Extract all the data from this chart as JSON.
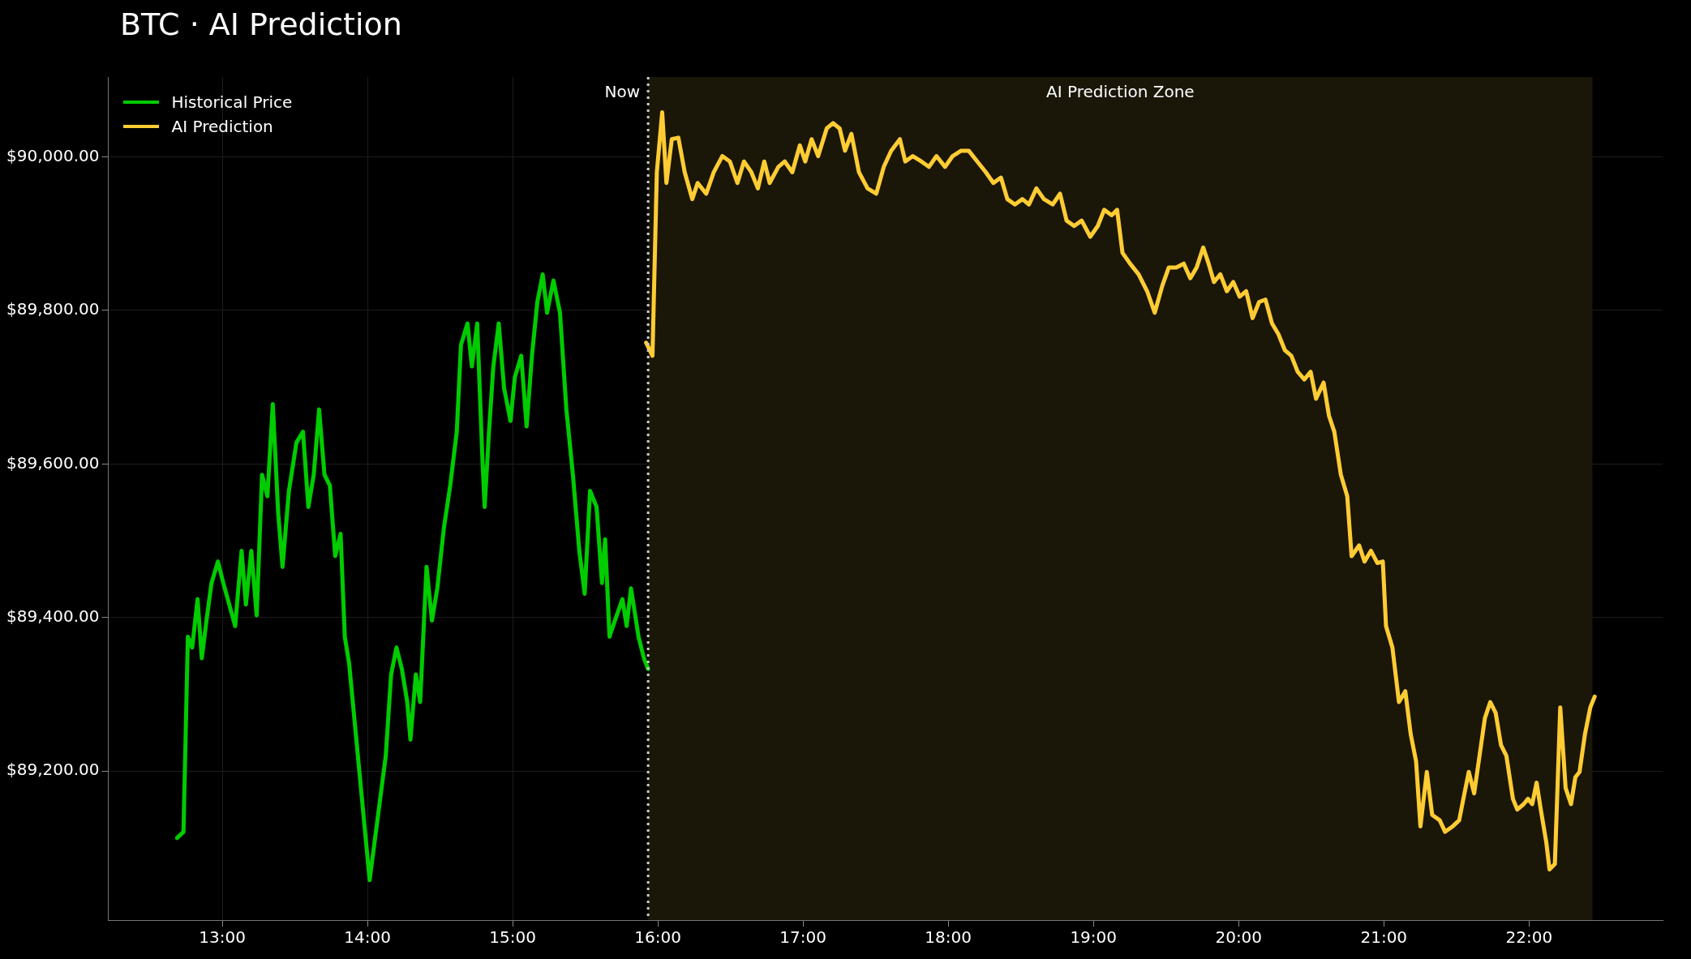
{
  "chart_data": {
    "type": "line",
    "title": "BTC · AI Prediction",
    "xlim": [
      12.215,
      22.92
    ],
    "ylim": [
      89006,
      90104
    ],
    "xticks": [
      {
        "value": 13,
        "label": "13:00"
      },
      {
        "value": 14,
        "label": "14:00"
      },
      {
        "value": 15,
        "label": "15:00"
      },
      {
        "value": 16,
        "label": "16:00"
      },
      {
        "value": 17,
        "label": "17:00"
      },
      {
        "value": 18,
        "label": "18:00"
      },
      {
        "value": 19,
        "label": "19:00"
      },
      {
        "value": 20,
        "label": "20:00"
      },
      {
        "value": 21,
        "label": "21:00"
      },
      {
        "value": 22,
        "label": "22:00"
      }
    ],
    "yticks": [
      {
        "value": 89200,
        "label": "$89,200.00"
      },
      {
        "value": 89400,
        "label": "$89,400.00"
      },
      {
        "value": 89600,
        "label": "$89,600.00"
      },
      {
        "value": 89800,
        "label": "$89,800.00"
      },
      {
        "value": 90000,
        "label": "$90,000.00"
      }
    ],
    "grid": true,
    "legend": "top left",
    "marker": "none",
    "line_style": "solid",
    "bands": [
      {
        "axis": "x",
        "from": 15.933,
        "to": 22.437,
        "label": "AI Prediction Zone",
        "color": "#1a1608"
      }
    ],
    "ref_lines": [
      {
        "axis": "x",
        "value": 15.933,
        "label": "Now",
        "color": "#cccccc",
        "line_style": "dotted"
      }
    ],
    "series": [
      {
        "name": "Historical Price",
        "color": "#00cc00",
        "x": [
          12.689,
          12.733,
          12.763,
          12.793,
          12.83,
          12.859,
          12.896,
          12.926,
          12.97,
          13.007,
          13.044,
          13.089,
          13.133,
          13.163,
          13.2,
          13.237,
          13.274,
          13.311,
          13.348,
          13.385,
          13.415,
          13.459,
          13.511,
          13.556,
          13.593,
          13.63,
          13.667,
          13.704,
          13.741,
          13.778,
          13.815,
          13.844,
          13.874,
          13.941,
          14.015,
          14.067,
          14.126,
          14.163,
          14.2,
          14.237,
          14.274,
          14.296,
          14.333,
          14.363,
          14.407,
          14.444,
          14.481,
          14.526,
          14.57,
          14.615,
          14.644,
          14.689,
          14.719,
          14.756,
          14.793,
          14.807,
          14.837,
          14.867,
          14.904,
          14.941,
          14.985,
          15.015,
          15.059,
          15.096,
          15.133,
          15.17,
          15.207,
          15.237,
          15.281,
          15.326,
          15.37,
          15.415,
          15.459,
          15.496,
          15.533,
          15.578,
          15.615,
          15.637,
          15.667,
          15.704,
          15.756,
          15.785,
          15.815,
          15.844,
          15.867,
          15.904,
          15.933
        ],
        "values": [
          89113,
          89121,
          89375,
          89361,
          89424,
          89347,
          89403,
          89445,
          89473,
          89445,
          null,
          89389,
          89487,
          89417,
          89487,
          89403,
          89586,
          89558,
          89678,
          89537,
          89466,
          89565,
          89628,
          89642,
          89544,
          89586,
          89671,
          89586,
          89572,
          89480,
          89509,
          89375,
          89340,
          null,
          89058,
          null,
          89220,
          89326,
          89361,
          89333,
          89290,
          89241,
          89326,
          89290,
          89466,
          89396,
          89438,
          89516,
          89572,
          89642,
          89755,
          89783,
          89727,
          89783,
          89600,
          89544,
          89642,
          89727,
          89783,
          89699,
          89656,
          89713,
          89741,
          89649,
          89741,
          89811,
          89847,
          89797,
          89839,
          89797,
          89671,
          89586,
          89487,
          89431,
          89565,
          89544,
          89445,
          89502,
          89375,
          89396,
          89424,
          89389,
          89438,
          89403,
          89375,
          89347,
          89333
        ]
      },
      {
        "name": "AI Prediction",
        "color": "#ffcc33",
        "x": [
          15.919,
          15.963,
          15.993,
          16.03,
          16.059,
          16.096,
          16.141,
          16.185,
          16.237,
          16.274,
          16.333,
          16.385,
          16.444,
          16.496,
          16.548,
          16.593,
          16.644,
          16.689,
          16.733,
          16.77,
          16.83,
          16.874,
          16.926,
          16.978,
          17.015,
          17.059,
          17.104,
          17.163,
          17.207,
          17.252,
          17.289,
          17.333,
          17.385,
          17.444,
          17.504,
          17.556,
          17.607,
          17.667,
          17.704,
          17.756,
          17.815,
          17.867,
          17.919,
          17.978,
          18.03,
          18.089,
          18.141,
          18.2,
          18.259,
          18.311,
          18.363,
          18.407,
          18.459,
          18.511,
          18.556,
          18.607,
          18.659,
          18.719,
          18.77,
          18.815,
          18.867,
          18.919,
          18.978,
          19.03,
          19.074,
          19.126,
          19.163,
          19.2,
          19.252,
          19.311,
          19.37,
          19.422,
          19.474,
          19.519,
          19.57,
          19.622,
          19.667,
          19.711,
          19.756,
          19.793,
          19.83,
          19.874,
          19.919,
          19.963,
          20.007,
          20.052,
          20.096,
          20.141,
          20.185,
          20.23,
          20.274,
          20.319,
          20.363,
          20.407,
          20.452,
          20.496,
          20.533,
          20.585,
          20.622,
          20.659,
          20.704,
          20.748,
          20.778,
          20.83,
          20.867,
          20.911,
          20.956,
          20.993,
          21.015,
          21.059,
          21.104,
          21.148,
          21.185,
          21.222,
          21.252,
          21.296,
          21.333,
          21.385,
          21.422,
          21.474,
          21.519,
          21.548,
          21.585,
          21.622,
          21.659,
          21.696,
          21.733,
          21.77,
          21.807,
          21.844,
          21.889,
          21.919,
          21.963,
          21.993,
          22.022,
          22.052,
          22.081,
          22.119,
          22.141,
          22.178,
          22.215,
          22.252,
          22.289,
          22.319,
          22.348,
          22.385,
          22.422,
          22.452
        ],
        "values": [
          89758,
          89741,
          89980,
          90058,
          89966,
          90023,
          90025,
          89980,
          89945,
          89966,
          89952,
          89980,
          90001,
          89994,
          89966,
          89994,
          89980,
          89959,
          89994,
          89966,
          89987,
          89994,
          89980,
          90015,
          89994,
          90023,
          90001,
          90037,
          90044,
          90037,
          90008,
          90030,
          89980,
          89959,
          89952,
          89987,
          90008,
          90023,
          89994,
          90001,
          89994,
          89987,
          90001,
          89987,
          90001,
          90008,
          90008,
          89994,
          89980,
          89966,
          89973,
          89945,
          89938,
          89945,
          89938,
          89959,
          89945,
          89938,
          89952,
          89917,
          89910,
          89917,
          89896,
          89910,
          89931,
          89924,
          89931,
          89875,
          89861,
          89847,
          89825,
          89797,
          89832,
          89856,
          89856,
          89861,
          89842,
          89856,
          89882,
          89861,
          89837,
          89847,
          89825,
          89837,
          89818,
          89825,
          89790,
          89811,
          89814,
          89783,
          89769,
          89748,
          89741,
          89720,
          89710,
          89720,
          89685,
          89706,
          89663,
          89642,
          89586,
          89558,
          89480,
          89494,
          89473,
          89487,
          89471,
          89473,
          89389,
          89361,
          89290,
          89304,
          89248,
          89213,
          89128,
          89199,
          89143,
          89136,
          89121,
          89128,
          89136,
          89164,
          89199,
          89171,
          89220,
          89269,
          89290,
          89276,
          89234,
          89220,
          89164,
          89150,
          89157,
          89164,
          89157,
          89185,
          89150,
          89107,
          89072,
          89079,
          89283,
          89178,
          89157,
          89192,
          89199,
          89248,
          89283,
          89297
        ]
      }
    ]
  }
}
